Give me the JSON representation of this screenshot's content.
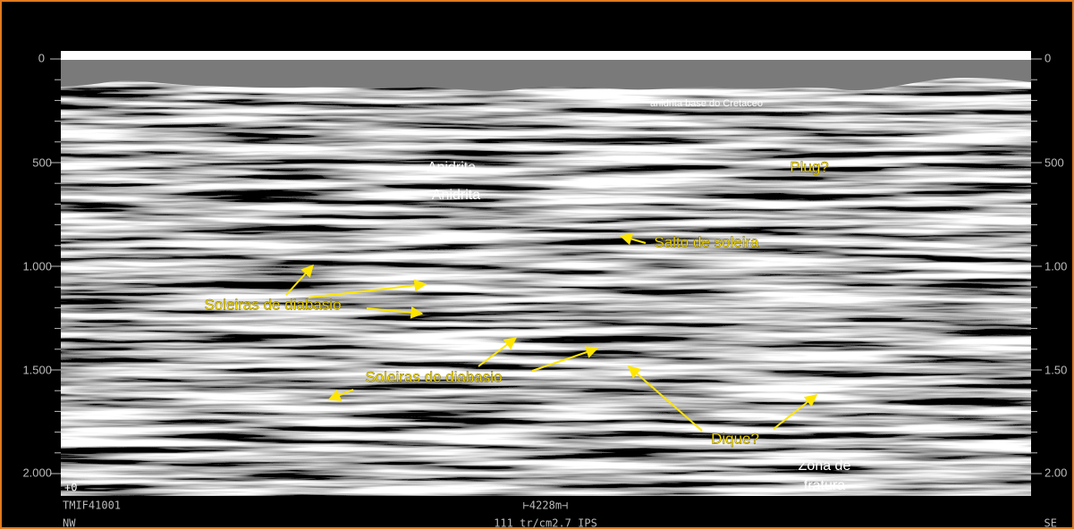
{
  "left_axis_labels": [
    "0",
    "500",
    "1.000",
    "1.500",
    "2.000"
  ],
  "right_axis_labels": [
    "0",
    "500",
    "1.00",
    "1.50",
    "2.00"
  ],
  "annotations": {
    "anhydrite_base": "anidrita base do Cretaceo",
    "anhydrite_1": "Anidrita",
    "anhydrite_2": "Anidrita",
    "plug": "Plug?",
    "sill_jump": "Salto de soleira",
    "sills_1": "Soleiras de diabasio",
    "sills_2": "Soleiras de diabasio",
    "dike": "Dique?",
    "fracture_zone": [
      "Zona de",
      "fratura"
    ]
  },
  "footer": {
    "origin": "+0",
    "line_id": "TMIF41001",
    "left_dir": "NW",
    "scale": "⊢4228m⊣",
    "params": "111 tr/cm2.7 IPS",
    "right_dir": "SE"
  }
}
